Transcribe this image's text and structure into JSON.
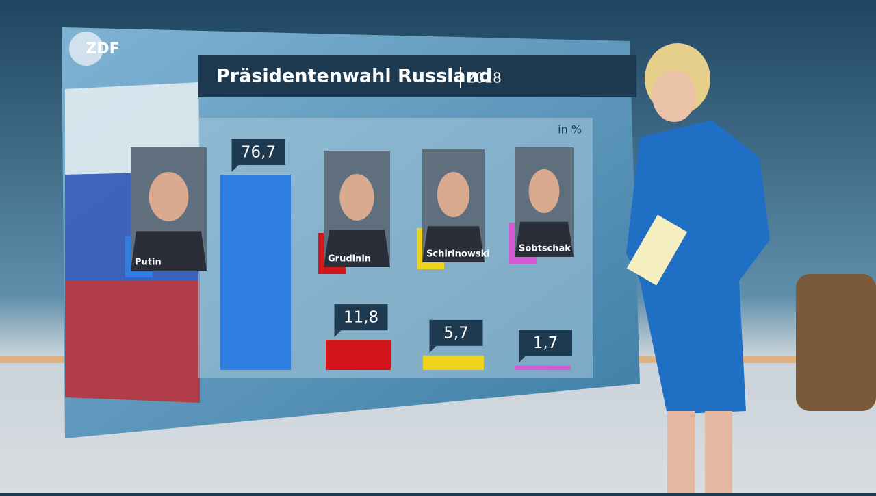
{
  "channel": "ZDF",
  "chart_data": {
    "type": "bar",
    "title": "Präsidentenwahl Russland",
    "subtitle": "2018",
    "unit_label": "in %",
    "categories": [
      "Putin",
      "Grudinin",
      "Schirinowski",
      "Sobtschak"
    ],
    "values": [
      76.7,
      11.8,
      5.7,
      1.7
    ],
    "value_labels": [
      "76,7",
      "11,8",
      "5,7",
      "1,7"
    ],
    "colors": [
      "#2f7fe0",
      "#d2161c",
      "#efd31c",
      "#d65ad6"
    ]
  }
}
